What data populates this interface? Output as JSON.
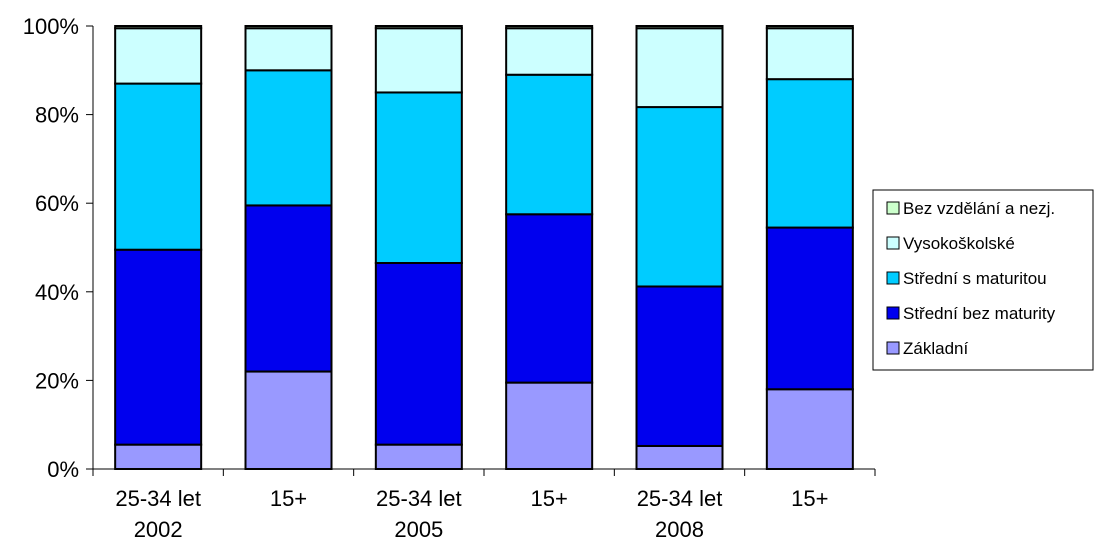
{
  "chart_data": {
    "type": "bar",
    "stacked": true,
    "normalized": true,
    "categories": [
      [
        "25-34 let",
        "2002"
      ],
      [
        "15+",
        ""
      ],
      [
        "25-34 let",
        "2005"
      ],
      [
        "15+",
        ""
      ],
      [
        "25-34 let",
        "2008"
      ],
      [
        "15+",
        ""
      ]
    ],
    "ylim": [
      0,
      100
    ],
    "yticks": [
      "0%",
      "20%",
      "40%",
      "60%",
      "80%",
      "100%"
    ],
    "grid": false,
    "legend_position": "right",
    "series": [
      {
        "name": "Základní",
        "color": "#9999ff",
        "values": [
          5.5,
          22,
          5.5,
          19.5,
          5.2,
          18
        ]
      },
      {
        "name": "Střední bez maturity",
        "color": "#0000ee",
        "values": [
          44,
          37.5,
          41,
          38,
          36,
          36.5
        ]
      },
      {
        "name": "Střední s maturitou",
        "color": "#00ccff",
        "values": [
          37.5,
          30.5,
          38.5,
          31.5,
          40.5,
          33.5
        ]
      },
      {
        "name": "Vysokoškolské",
        "color": "#ccffff",
        "values": [
          12.5,
          9.5,
          14.5,
          10.5,
          17.8,
          11.5
        ]
      },
      {
        "name": "Bez vzdělání a nezj.",
        "color": "#ccffcc",
        "values": [
          0.5,
          0.5,
          0.5,
          0.5,
          0.5,
          0.5
        ]
      }
    ],
    "legend_order": [
      "Bez vzdělání a nezj.",
      "Vysokoškolské",
      "Střední s maturitou",
      "Střední bez maturity",
      "Základní"
    ]
  }
}
